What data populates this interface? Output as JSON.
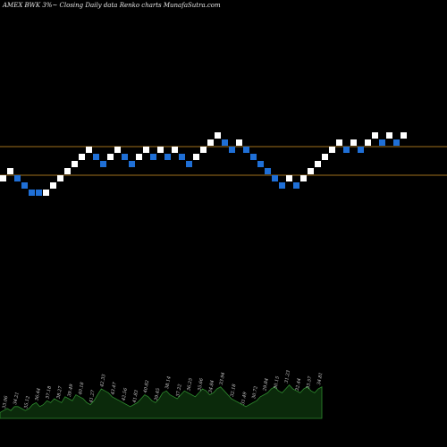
{
  "chart_data": {
    "type": "renko",
    "title": "AMEX  BWK 3%~  Closing Daily data  Renko  charts MunafaSutra.com",
    "colors": {
      "background": "#000000",
      "up_brick": "#ffffff",
      "down_brick": "#1f6fd6",
      "reference_line": "#a0701c",
      "volume_fill": "#0b2a0b",
      "volume_outline": "#2e8b2e",
      "volume_label": "#d8d8d8"
    },
    "reference_lines": [
      {
        "level": 2.5
      },
      {
        "level": -1.5
      }
    ],
    "bricks": [
      {
        "dir": "up",
        "level": -2
      },
      {
        "dir": "up",
        "level": -1
      },
      {
        "dir": "down",
        "level": -2
      },
      {
        "dir": "down",
        "level": -3
      },
      {
        "dir": "down",
        "level": -4
      },
      {
        "dir": "down",
        "level": -4
      },
      {
        "dir": "up",
        "level": -4
      },
      {
        "dir": "up",
        "level": -3
      },
      {
        "dir": "up",
        "level": -2
      },
      {
        "dir": "up",
        "level": -1
      },
      {
        "dir": "up",
        "level": 0
      },
      {
        "dir": "up",
        "level": 1
      },
      {
        "dir": "up",
        "level": 2
      },
      {
        "dir": "down",
        "level": 1
      },
      {
        "dir": "down",
        "level": 0
      },
      {
        "dir": "up",
        "level": 1
      },
      {
        "dir": "up",
        "level": 2
      },
      {
        "dir": "down",
        "level": 1
      },
      {
        "dir": "down",
        "level": 0
      },
      {
        "dir": "up",
        "level": 1
      },
      {
        "dir": "up",
        "level": 2
      },
      {
        "dir": "down",
        "level": 1
      },
      {
        "dir": "up",
        "level": 2
      },
      {
        "dir": "down",
        "level": 1
      },
      {
        "dir": "up",
        "level": 2
      },
      {
        "dir": "down",
        "level": 1
      },
      {
        "dir": "down",
        "level": 0
      },
      {
        "dir": "up",
        "level": 1
      },
      {
        "dir": "up",
        "level": 2
      },
      {
        "dir": "up",
        "level": 3
      },
      {
        "dir": "up",
        "level": 4
      },
      {
        "dir": "down",
        "level": 3
      },
      {
        "dir": "down",
        "level": 2
      },
      {
        "dir": "up",
        "level": 3
      },
      {
        "dir": "down",
        "level": 2
      },
      {
        "dir": "down",
        "level": 1
      },
      {
        "dir": "down",
        "level": 0
      },
      {
        "dir": "down",
        "level": -1
      },
      {
        "dir": "down",
        "level": -2
      },
      {
        "dir": "down",
        "level": -3
      },
      {
        "dir": "up",
        "level": -2
      },
      {
        "dir": "down",
        "level": -3
      },
      {
        "dir": "up",
        "level": -2
      },
      {
        "dir": "up",
        "level": -1
      },
      {
        "dir": "up",
        "level": 0
      },
      {
        "dir": "up",
        "level": 1
      },
      {
        "dir": "up",
        "level": 2
      },
      {
        "dir": "up",
        "level": 3
      },
      {
        "dir": "down",
        "level": 2
      },
      {
        "dir": "up",
        "level": 3
      },
      {
        "dir": "down",
        "level": 2
      },
      {
        "dir": "up",
        "level": 3
      },
      {
        "dir": "up",
        "level": 4
      },
      {
        "dir": "down",
        "level": 3
      },
      {
        "dir": "up",
        "level": 4
      },
      {
        "dir": "down",
        "level": 3
      },
      {
        "dir": "up",
        "level": 4
      }
    ],
    "volume": {
      "values": [
        3,
        4,
        5,
        4,
        6,
        6,
        5,
        4,
        5,
        7,
        8,
        6,
        7,
        9,
        8,
        10,
        9,
        8,
        11,
        10,
        9,
        12,
        11,
        10,
        8,
        7,
        9,
        12,
        15,
        14,
        13,
        11,
        10,
        9,
        8,
        7,
        6,
        7,
        8,
        10,
        12,
        11,
        9,
        8,
        10,
        13,
        14,
        12,
        11,
        10,
        12,
        14,
        13,
        12,
        11,
        13,
        15,
        14,
        12,
        13,
        15,
        16,
        14,
        12,
        10,
        9,
        8,
        7,
        6,
        7,
        8,
        9,
        11,
        12,
        13,
        15,
        16,
        14,
        13,
        15,
        17,
        15,
        14,
        13,
        15,
        16,
        14,
        13,
        15,
        16
      ],
      "labels": [
        "33.06",
        "34.21",
        "35.12",
        "36.44",
        "37.18",
        "38.27",
        "39.49",
        "40.18",
        "41.27",
        "42.33",
        "43.47",
        "42.56",
        "41.83",
        "40.82",
        "39.45",
        "38.14",
        "37.22",
        "36.25",
        "35.66",
        "34.84",
        "33.94",
        "32.18",
        "31.49",
        "30.72",
        "29.84",
        "30.15",
        "31.23",
        "32.44",
        "33.57",
        "34.81"
      ]
    }
  }
}
